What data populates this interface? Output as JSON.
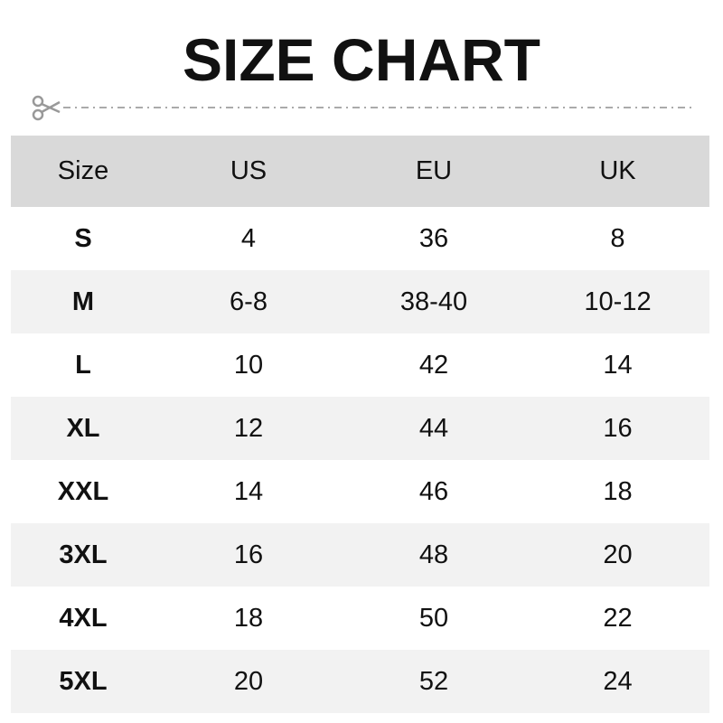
{
  "title": "SIZE CHART",
  "table": {
    "headers": [
      "Size",
      "US",
      "EU",
      "UK"
    ],
    "rows": [
      [
        "S",
        "4",
        "36",
        "8"
      ],
      [
        "M",
        "6-8",
        "38-40",
        "10-12"
      ],
      [
        "L",
        "10",
        "42",
        "14"
      ],
      [
        "XL",
        "12",
        "44",
        "16"
      ],
      [
        "XXL",
        "14",
        "46",
        "18"
      ],
      [
        "3XL",
        "16",
        "48",
        "20"
      ],
      [
        "4XL",
        "18",
        "50",
        "22"
      ],
      [
        "5XL",
        "20",
        "52",
        "24"
      ]
    ]
  },
  "colors": {
    "header_bg": "#d9d9d9",
    "alt_row_bg": "#f2f2f2",
    "cutline": "#aaaaaa"
  },
  "icons": {
    "cutline": "scissors-icon"
  }
}
